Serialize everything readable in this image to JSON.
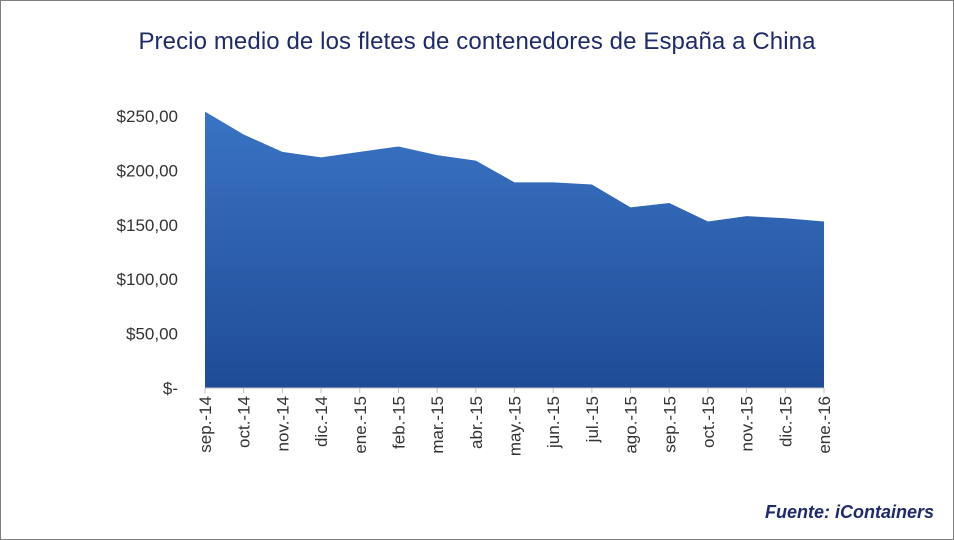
{
  "title": "Precio medio de los fletes de contenedores de España a China",
  "source": "Fuente: iContainers",
  "colors": {
    "title": "#1f2a6b",
    "fill_top": "#3a74c4",
    "fill_bottom": "#1f4b96"
  },
  "chart_data": {
    "type": "area",
    "title": "Precio medio de los fletes de contenedores de España a China",
    "xlabel": "",
    "ylabel": "",
    "categories": [
      "sep.-14",
      "oct.-14",
      "nov.-14",
      "dic.-14",
      "ene.-15",
      "feb.-15",
      "mar.-15",
      "abr.-15",
      "may.-15",
      "jun.-15",
      "jul.-15",
      "ago.-15",
      "sep.-15",
      "oct.-15",
      "nov.-15",
      "dic.-15",
      "ene.-16"
    ],
    "values": [
      254,
      233,
      217,
      212,
      217,
      222,
      214,
      209,
      189,
      189,
      187,
      166,
      170,
      153,
      158,
      156,
      153
    ],
    "ylim": [
      0,
      250
    ],
    "yticks": [
      0,
      50,
      100,
      150,
      200,
      250
    ],
    "yticklabels": [
      "$-",
      "$50,00",
      "$100,00",
      "$150,00",
      "$200,00",
      "$250,00"
    ],
    "grid": false,
    "legend": "none"
  }
}
